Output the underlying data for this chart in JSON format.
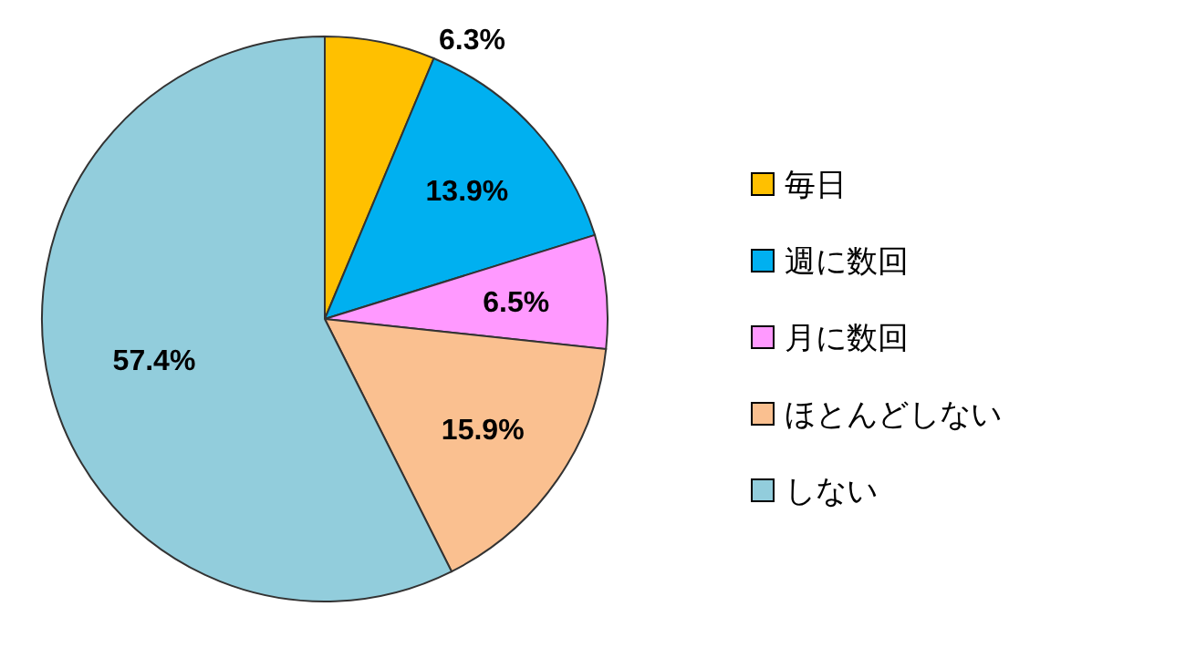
{
  "chart_data": {
    "type": "pie",
    "categories": [
      "毎日",
      "週に数回",
      "月に数回",
      "ほとんどしない",
      "しない"
    ],
    "values": [
      6.3,
      13.9,
      6.5,
      15.9,
      57.4
    ],
    "colors": [
      "#ffc000",
      "#00b0f0",
      "#ff99ff",
      "#fac090",
      "#92cddc"
    ],
    "value_labels": [
      "6.3%",
      "13.9%",
      "6.5%",
      "15.9%",
      "57.4%"
    ],
    "legend": "right"
  }
}
